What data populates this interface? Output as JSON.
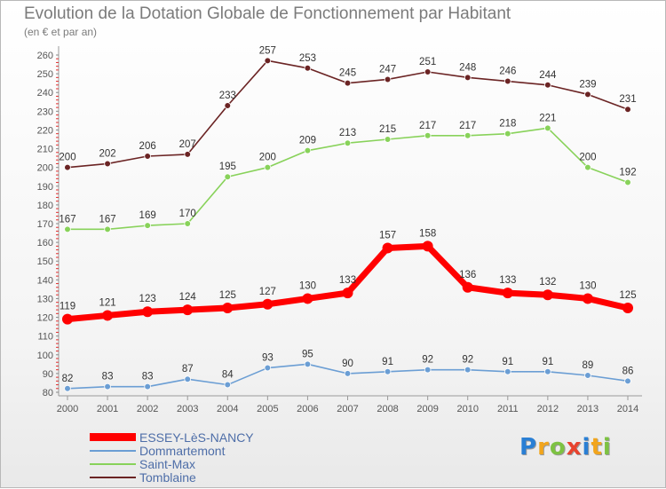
{
  "chart_data": {
    "type": "line",
    "title": "Evolution de la Dotation Globale de Fonctionnement par Habitant",
    "subtitle": "(en € et par an)",
    "xlabel": "",
    "ylabel": "",
    "x": [
      "2000",
      "2001",
      "2002",
      "2003",
      "2004",
      "2005",
      "2006",
      "2007",
      "2008",
      "2009",
      "2010",
      "2011",
      "2012",
      "2013",
      "2014"
    ],
    "ylim": [
      80,
      260
    ],
    "yticks": [
      80,
      90,
      100,
      110,
      120,
      130,
      140,
      150,
      160,
      170,
      180,
      190,
      200,
      210,
      220,
      230,
      240,
      250,
      260
    ],
    "grid": false,
    "legend_position": "bottom-left",
    "series": [
      {
        "name": "ESSEY-LèS-NANCY",
        "color": "#ff0000",
        "emphasis": true,
        "values": [
          119,
          121,
          123,
          124,
          125,
          127,
          130,
          133,
          157,
          158,
          136,
          133,
          132,
          130,
          125
        ]
      },
      {
        "name": "Dommartemont",
        "color": "#6b9ed4",
        "emphasis": false,
        "values": [
          82,
          83,
          83,
          87,
          84,
          93,
          95,
          90,
          91,
          92,
          92,
          91,
          91,
          89,
          86
        ]
      },
      {
        "name": "Saint-Max",
        "color": "#88d25a",
        "emphasis": false,
        "values": [
          167,
          167,
          169,
          170,
          195,
          200,
          209,
          213,
          215,
          217,
          217,
          218,
          221,
          200,
          192
        ]
      },
      {
        "name": "Tomblaine",
        "color": "#6b2424",
        "emphasis": false,
        "values": [
          200,
          202,
          206,
          207,
          233,
          257,
          253,
          245,
          247,
          251,
          248,
          246,
          244,
          239,
          231
        ]
      }
    ]
  },
  "brand": {
    "letters": [
      {
        "ch": "P",
        "color": "#2a7fd4"
      },
      {
        "ch": "r",
        "color": "#f2a51c"
      },
      {
        "ch": "o",
        "color": "#7dc242"
      },
      {
        "ch": "x",
        "color": "#e8432e"
      },
      {
        "ch": "i",
        "color": "#2a7fd4"
      },
      {
        "ch": "t",
        "color": "#f2a51c"
      },
      {
        "ch": "i",
        "color": "#7dc242"
      }
    ]
  }
}
